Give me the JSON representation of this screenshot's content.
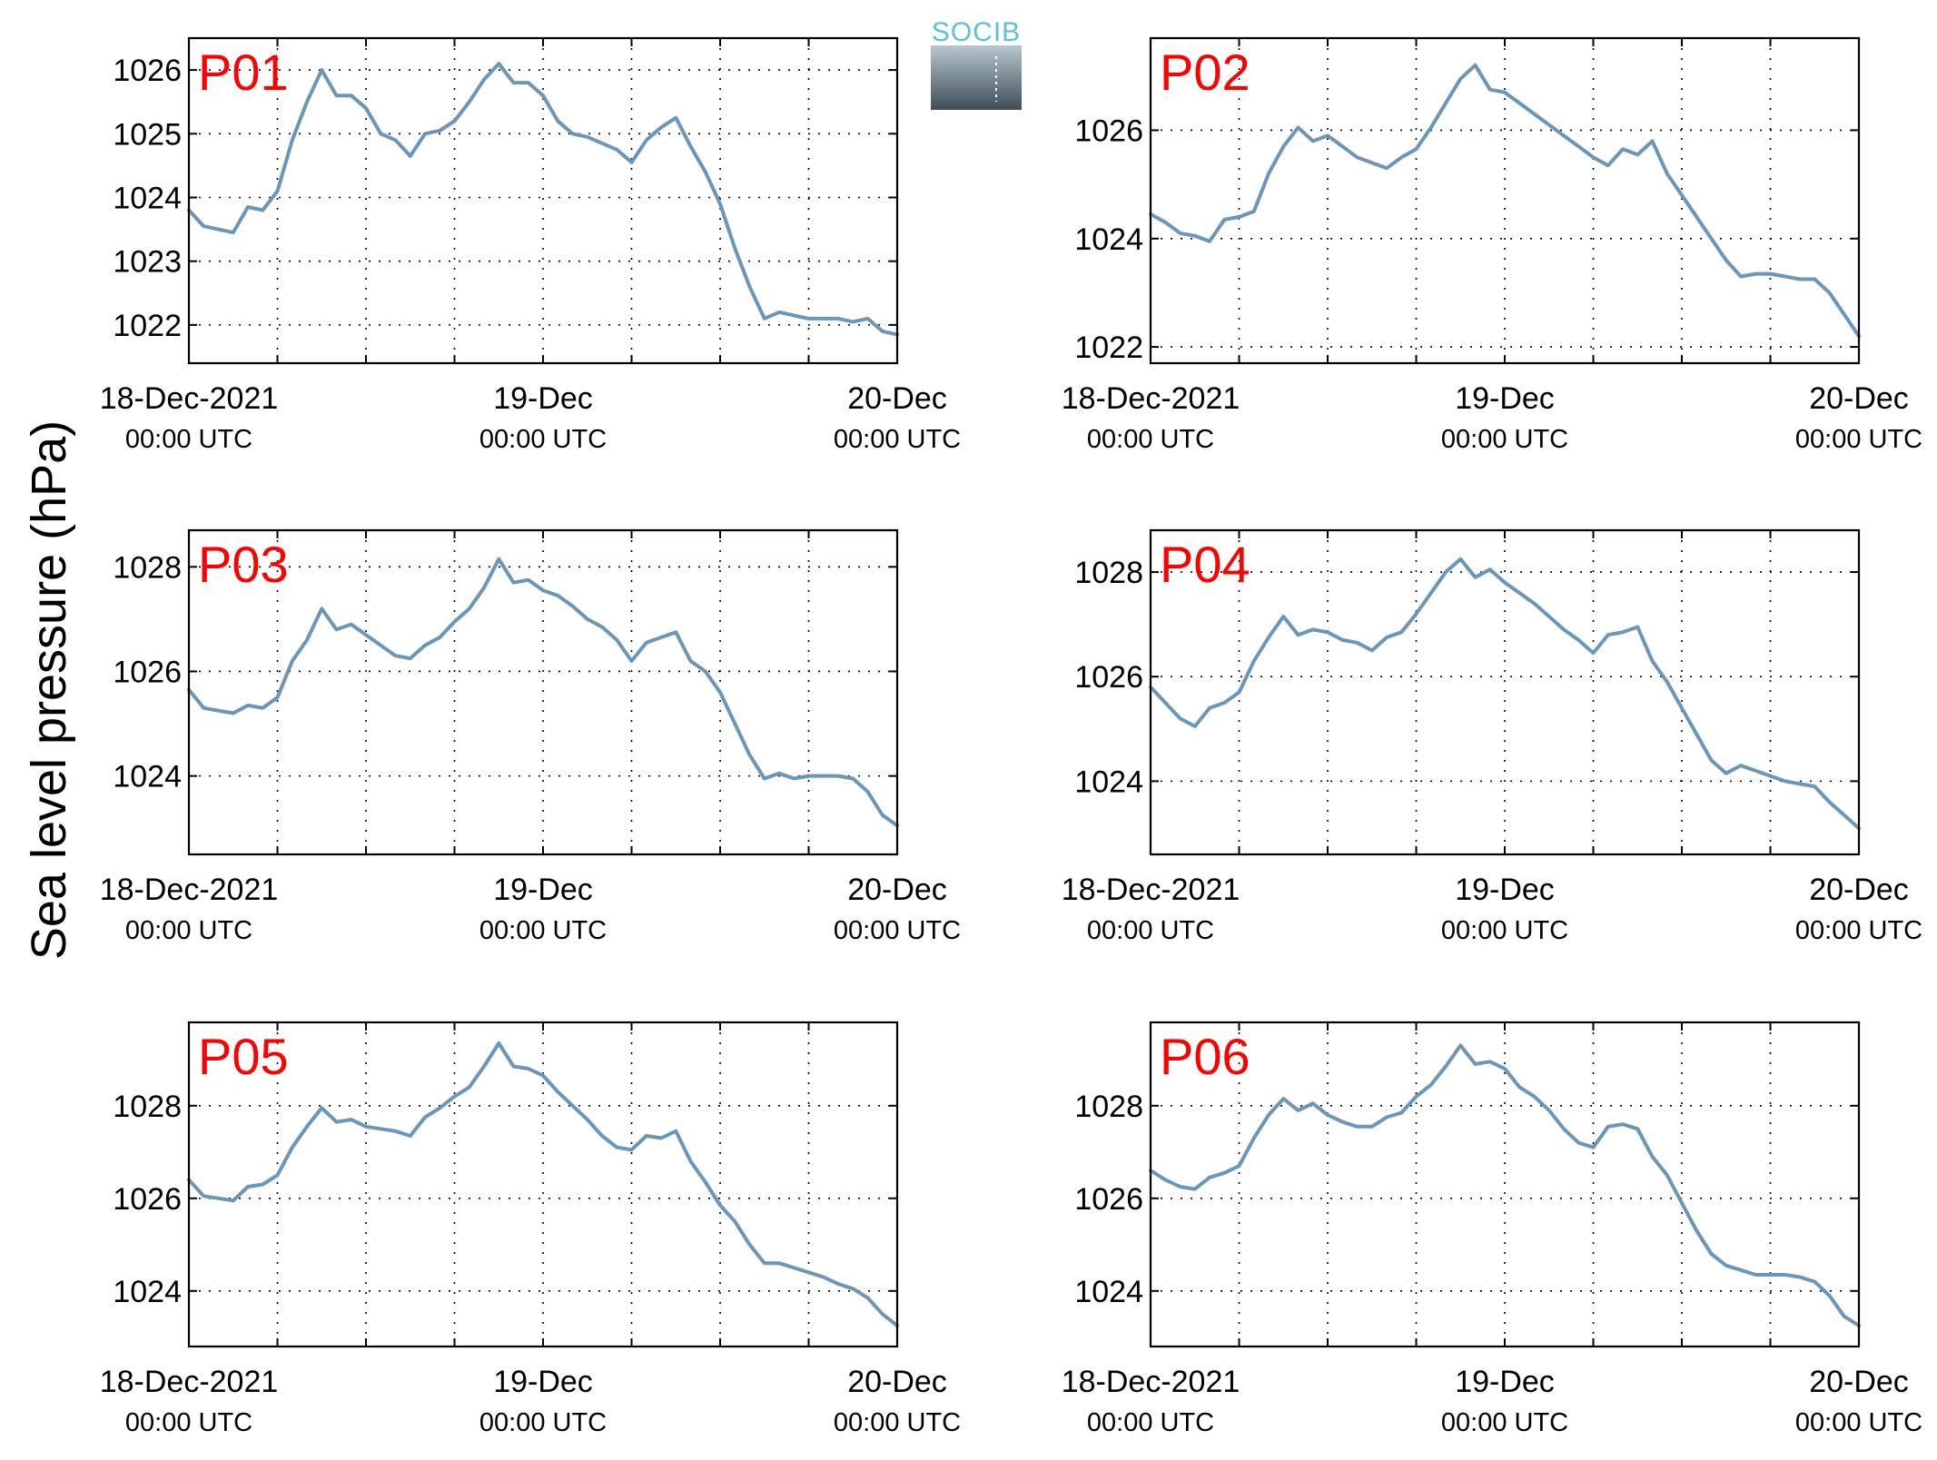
{
  "figure": {
    "ylabel": "Sea level pressure (hPa)",
    "logo_text": "SOCIB",
    "colors": {
      "line": "#6b96b8",
      "panel_label": "#ff0000",
      "logo_accent": "#5bc0d8",
      "logo_dark": "#3e4d57"
    }
  },
  "chart_data": [
    {
      "type": "line",
      "label": "P01",
      "x_ticks": [
        {
          "top": "18-Dec-2021",
          "bottom": "00:00 UTC"
        },
        {
          "top": "19-Dec",
          "bottom": "00:00 UTC"
        },
        {
          "top": "20-Dec",
          "bottom": "00:00 UTC"
        }
      ],
      "xlim": [
        0,
        48
      ],
      "ylim": [
        1021.4,
        1026.5
      ],
      "yticks": [
        1022,
        1023,
        1024,
        1025,
        1026
      ],
      "grid": true,
      "series": [
        {
          "x": [
            0,
            1,
            2,
            3,
            4,
            5,
            6,
            7,
            8,
            9,
            10,
            11,
            12,
            13,
            14,
            15,
            16,
            17,
            18,
            19,
            20,
            21,
            22,
            23,
            24,
            25,
            26,
            27,
            28,
            29,
            30,
            31,
            32,
            33,
            34,
            35,
            36,
            37,
            38,
            39,
            40,
            41,
            42,
            43,
            44,
            45,
            46,
            47,
            48
          ],
          "values": [
            1023.8,
            1023.55,
            1023.5,
            1023.45,
            1023.85,
            1023.8,
            1024.1,
            1024.9,
            1025.5,
            1026.0,
            1025.6,
            1025.6,
            1025.4,
            1025.0,
            1024.9,
            1024.65,
            1025.0,
            1025.05,
            1025.2,
            1025.5,
            1025.85,
            1026.1,
            1025.8,
            1025.8,
            1025.6,
            1025.2,
            1025.0,
            1024.95,
            1024.85,
            1024.75,
            1024.55,
            1024.9,
            1025.1,
            1025.25,
            1024.8,
            1024.4,
            1023.9,
            1023.2,
            1022.6,
            1022.1,
            1022.2,
            1022.15,
            1022.1,
            1022.1,
            1022.1,
            1022.05,
            1022.1,
            1021.9,
            1021.85
          ]
        }
      ]
    },
    {
      "type": "line",
      "label": "P02",
      "x_ticks": [
        {
          "top": "18-Dec-2021",
          "bottom": "00:00 UTC"
        },
        {
          "top": "19-Dec",
          "bottom": "00:00 UTC"
        },
        {
          "top": "20-Dec",
          "bottom": "00:00 UTC"
        }
      ],
      "xlim": [
        0,
        48
      ],
      "ylim": [
        1021.7,
        1027.7
      ],
      "yticks": [
        1022,
        1024,
        1026
      ],
      "grid": true,
      "series": [
        {
          "x": [
            0,
            1,
            2,
            3,
            4,
            5,
            6,
            7,
            8,
            9,
            10,
            11,
            12,
            13,
            14,
            15,
            16,
            17,
            18,
            19,
            20,
            21,
            22,
            23,
            24,
            25,
            26,
            27,
            28,
            29,
            30,
            31,
            32,
            33,
            34,
            35,
            36,
            37,
            38,
            39,
            40,
            41,
            42,
            43,
            44,
            45,
            46,
            47,
            48
          ],
          "values": [
            1024.45,
            1024.3,
            1024.1,
            1024.05,
            1023.95,
            1024.35,
            1024.4,
            1024.5,
            1025.2,
            1025.7,
            1026.05,
            1025.8,
            1025.9,
            1025.7,
            1025.5,
            1025.4,
            1025.3,
            1025.5,
            1025.65,
            1026.05,
            1026.5,
            1026.95,
            1027.2,
            1026.75,
            1026.7,
            1026.5,
            1026.3,
            1026.1,
            1025.9,
            1025.7,
            1025.5,
            1025.35,
            1025.65,
            1025.55,
            1025.8,
            1025.2,
            1024.8,
            1024.4,
            1024.0,
            1023.6,
            1023.3,
            1023.35,
            1023.35,
            1023.3,
            1023.25,
            1023.25,
            1023.0,
            1022.6,
            1022.2
          ]
        }
      ]
    },
    {
      "type": "line",
      "label": "P03",
      "x_ticks": [
        {
          "top": "18-Dec-2021",
          "bottom": "00:00 UTC"
        },
        {
          "top": "19-Dec",
          "bottom": "00:00 UTC"
        },
        {
          "top": "20-Dec",
          "bottom": "00:00 UTC"
        }
      ],
      "xlim": [
        0,
        48
      ],
      "ylim": [
        1022.5,
        1028.7
      ],
      "yticks": [
        1024,
        1026,
        1028
      ],
      "grid": true,
      "series": [
        {
          "x": [
            0,
            1,
            2,
            3,
            4,
            5,
            6,
            7,
            8,
            9,
            10,
            11,
            12,
            13,
            14,
            15,
            16,
            17,
            18,
            19,
            20,
            21,
            22,
            23,
            24,
            25,
            26,
            27,
            28,
            29,
            30,
            31,
            32,
            33,
            34,
            35,
            36,
            37,
            38,
            39,
            40,
            41,
            42,
            43,
            44,
            45,
            46,
            47,
            48
          ],
          "values": [
            1025.65,
            1025.3,
            1025.25,
            1025.2,
            1025.35,
            1025.3,
            1025.5,
            1026.2,
            1026.6,
            1027.2,
            1026.8,
            1026.9,
            1026.7,
            1026.5,
            1026.3,
            1026.25,
            1026.5,
            1026.65,
            1026.95,
            1027.2,
            1027.6,
            1028.15,
            1027.7,
            1027.75,
            1027.55,
            1027.45,
            1027.25,
            1027.0,
            1026.85,
            1026.6,
            1026.2,
            1026.55,
            1026.65,
            1026.75,
            1026.2,
            1026.0,
            1025.6,
            1025.0,
            1024.4,
            1023.95,
            1024.05,
            1023.95,
            1024.0,
            1024.0,
            1024.0,
            1023.95,
            1023.7,
            1023.25,
            1023.05
          ]
        }
      ]
    },
    {
      "type": "line",
      "label": "P04",
      "x_ticks": [
        {
          "top": "18-Dec-2021",
          "bottom": "00:00 UTC"
        },
        {
          "top": "19-Dec",
          "bottom": "00:00 UTC"
        },
        {
          "top": "20-Dec",
          "bottom": "00:00 UTC"
        }
      ],
      "xlim": [
        0,
        48
      ],
      "ylim": [
        1022.6,
        1028.8
      ],
      "yticks": [
        1024,
        1026,
        1028
      ],
      "grid": true,
      "series": [
        {
          "x": [
            0,
            1,
            2,
            3,
            4,
            5,
            6,
            7,
            8,
            9,
            10,
            11,
            12,
            13,
            14,
            15,
            16,
            17,
            18,
            19,
            20,
            21,
            22,
            23,
            24,
            25,
            26,
            27,
            28,
            29,
            30,
            31,
            32,
            33,
            34,
            35,
            36,
            37,
            38,
            39,
            40,
            41,
            42,
            43,
            44,
            45,
            46,
            47,
            48
          ],
          "values": [
            1025.8,
            1025.5,
            1025.2,
            1025.05,
            1025.4,
            1025.5,
            1025.7,
            1026.3,
            1026.75,
            1027.15,
            1026.8,
            1026.9,
            1026.85,
            1026.7,
            1026.65,
            1026.5,
            1026.75,
            1026.85,
            1027.2,
            1027.6,
            1028.0,
            1028.25,
            1027.9,
            1028.05,
            1027.8,
            1027.6,
            1027.4,
            1027.15,
            1026.9,
            1026.7,
            1026.45,
            1026.8,
            1026.85,
            1026.95,
            1026.3,
            1025.9,
            1025.4,
            1024.9,
            1024.4,
            1024.15,
            1024.3,
            1024.2,
            1024.1,
            1024.0,
            1023.95,
            1023.9,
            1023.6,
            1023.35,
            1023.1
          ]
        }
      ]
    },
    {
      "type": "line",
      "label": "P05",
      "x_ticks": [
        {
          "top": "18-Dec-2021",
          "bottom": "00:00 UTC"
        },
        {
          "top": "19-Dec",
          "bottom": "00:00 UTC"
        },
        {
          "top": "20-Dec",
          "bottom": "00:00 UTC"
        }
      ],
      "xlim": [
        0,
        48
      ],
      "ylim": [
        1022.8,
        1029.8
      ],
      "yticks": [
        1024,
        1026,
        1028
      ],
      "grid": true,
      "series": [
        {
          "x": [
            0,
            1,
            2,
            3,
            4,
            5,
            6,
            7,
            8,
            9,
            10,
            11,
            12,
            13,
            14,
            15,
            16,
            17,
            18,
            19,
            20,
            21,
            22,
            23,
            24,
            25,
            26,
            27,
            28,
            29,
            30,
            31,
            32,
            33,
            34,
            35,
            36,
            37,
            38,
            39,
            40,
            41,
            42,
            43,
            44,
            45,
            46,
            47,
            48
          ],
          "values": [
            1026.4,
            1026.05,
            1026.0,
            1025.95,
            1026.25,
            1026.3,
            1026.5,
            1027.1,
            1027.55,
            1027.95,
            1027.65,
            1027.7,
            1027.55,
            1027.5,
            1027.45,
            1027.35,
            1027.75,
            1027.95,
            1028.2,
            1028.4,
            1028.85,
            1029.35,
            1028.85,
            1028.8,
            1028.65,
            1028.3,
            1028.0,
            1027.7,
            1027.35,
            1027.1,
            1027.05,
            1027.35,
            1027.3,
            1027.45,
            1026.8,
            1026.35,
            1025.85,
            1025.5,
            1025.0,
            1024.6,
            1024.6,
            1024.5,
            1024.4,
            1024.3,
            1024.15,
            1024.05,
            1023.85,
            1023.5,
            1023.25
          ]
        }
      ]
    },
    {
      "type": "line",
      "label": "P06",
      "x_ticks": [
        {
          "top": "18-Dec-2021",
          "bottom": "00:00 UTC"
        },
        {
          "top": "19-Dec",
          "bottom": "00:00 UTC"
        },
        {
          "top": "20-Dec",
          "bottom": "00:00 UTC"
        }
      ],
      "xlim": [
        0,
        48
      ],
      "ylim": [
        1022.8,
        1029.8
      ],
      "yticks": [
        1024,
        1026,
        1028
      ],
      "grid": true,
      "series": [
        {
          "x": [
            0,
            1,
            2,
            3,
            4,
            5,
            6,
            7,
            8,
            9,
            10,
            11,
            12,
            13,
            14,
            15,
            16,
            17,
            18,
            19,
            20,
            21,
            22,
            23,
            24,
            25,
            26,
            27,
            28,
            29,
            30,
            31,
            32,
            33,
            34,
            35,
            36,
            37,
            38,
            39,
            40,
            41,
            42,
            43,
            44,
            45,
            46,
            47,
            48
          ],
          "values": [
            1026.6,
            1026.4,
            1026.25,
            1026.2,
            1026.45,
            1026.55,
            1026.7,
            1027.3,
            1027.8,
            1028.15,
            1027.9,
            1028.05,
            1027.8,
            1027.65,
            1027.55,
            1027.55,
            1027.75,
            1027.85,
            1028.2,
            1028.45,
            1028.85,
            1029.3,
            1028.9,
            1028.95,
            1028.8,
            1028.4,
            1028.2,
            1027.9,
            1027.5,
            1027.2,
            1027.1,
            1027.55,
            1027.6,
            1027.5,
            1026.9,
            1026.5,
            1025.9,
            1025.3,
            1024.8,
            1024.55,
            1024.45,
            1024.35,
            1024.35,
            1024.35,
            1024.3,
            1024.2,
            1023.9,
            1023.45,
            1023.25
          ]
        }
      ]
    }
  ]
}
